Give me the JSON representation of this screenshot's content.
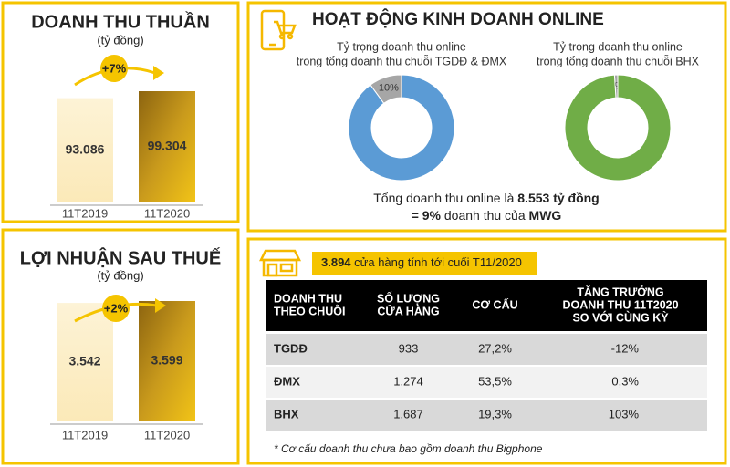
{
  "chart_data": [
    {
      "type": "bar",
      "title": "DOANH THU THUẦN",
      "subtitle": "(tỷ đồng)",
      "categories": [
        "11T2019",
        "11T2020"
      ],
      "values": [
        93086,
        99304
      ],
      "value_labels": [
        "93.086",
        "99.304"
      ],
      "colors": [
        "#fcefc7",
        "#c99a1c"
      ],
      "annotation": "+7%"
    },
    {
      "type": "bar",
      "title": "LỢI NHUẬN SAU THUẾ",
      "subtitle": "(tỷ đồng)",
      "categories": [
        "11T2019",
        "11T2020"
      ],
      "values": [
        3542,
        3599
      ],
      "value_labels": [
        "3.542",
        "3.599"
      ],
      "colors": [
        "#fcefc7",
        "#c99a1c"
      ],
      "annotation": "+2%"
    },
    {
      "type": "donut",
      "title": [
        "Tỷ trọng doanh thu online",
        "trong tổng doanh thu chuỗi TGDĐ & ĐMX"
      ],
      "values": [
        10,
        90
      ],
      "value_labels": [
        "10%",
        null
      ],
      "colors": [
        "#a6a6a6",
        "#5b9bd5"
      ]
    },
    {
      "type": "donut",
      "title": [
        "Tỷ trọng doanh thu online",
        "trong tổng doanh thu chuỗi BHX"
      ],
      "values": [
        1,
        99
      ],
      "value_labels": [
        "1%",
        null
      ],
      "colors": [
        "#a6a6a6",
        "#70ad47"
      ]
    }
  ],
  "online": {
    "heading": "HOẠT ĐỘNG KINH DOANH ONLINE",
    "summary": [
      [
        "Tổng doanh thu online là ",
        "8.553 tỷ đồng"
      ],
      [
        "= 9%",
        " doanh thu của ",
        "MWG"
      ]
    ]
  },
  "stores": {
    "banner": [
      "3.894",
      " cửa hàng tính tới cuối T11/2020"
    ],
    "table": {
      "header": [
        [
          "DOANH THU",
          "THEO CHUỖI"
        ],
        [
          "SỐ LƯỢNG",
          "CỬA HÀNG"
        ],
        [
          "CƠ CẤU"
        ],
        [
          "TĂNG TRƯỞNG",
          "DOANH THU 11T2020",
          "SO VỚI CÙNG KỲ"
        ]
      ],
      "rows": [
        [
          "TGDĐ",
          "933",
          "27,2%",
          "-12%"
        ],
        [
          "ĐMX",
          "1.274",
          "53,5%",
          "0,3%"
        ],
        [
          "BHX",
          "1.687",
          "19,3%",
          "103%"
        ]
      ]
    },
    "footnote": "* Cơ cấu doanh thu chưa bao gồm doanh thu Bigphone"
  }
}
